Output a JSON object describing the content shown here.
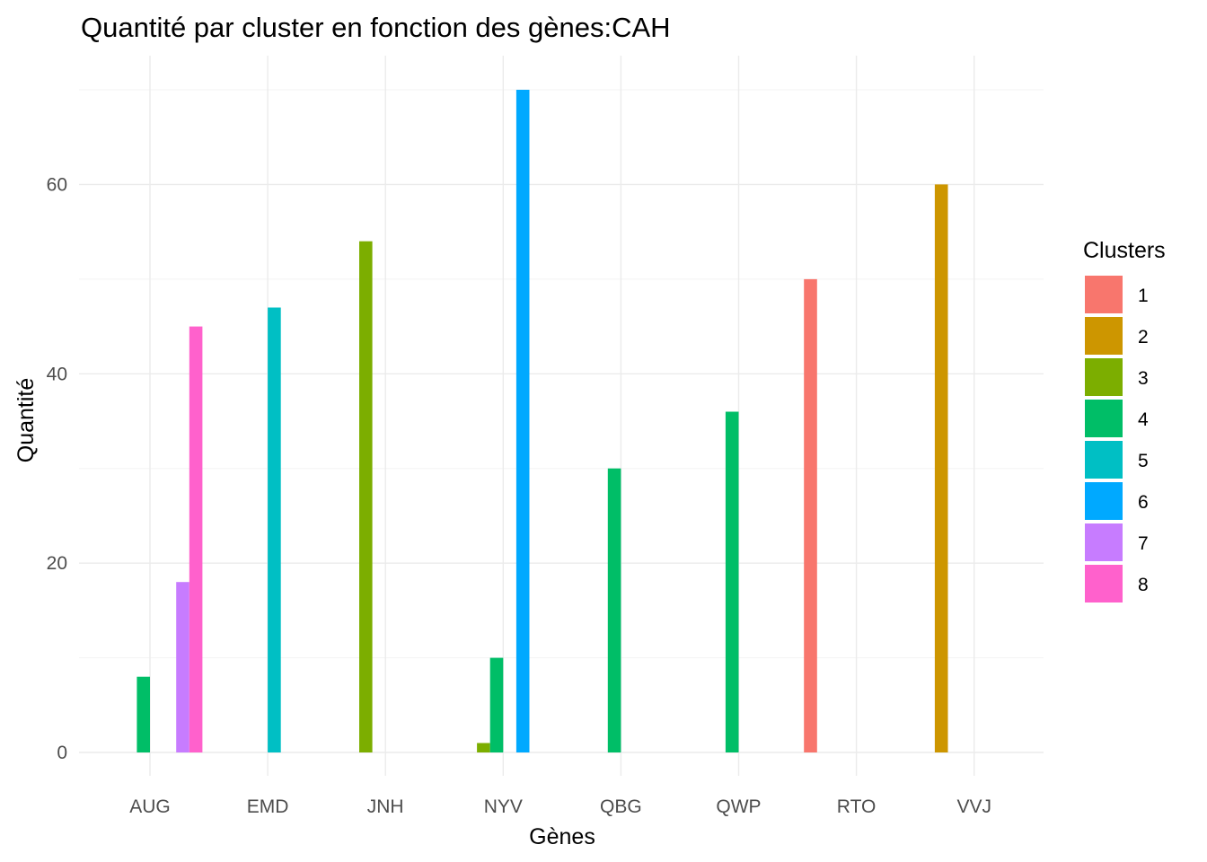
{
  "chart_data": {
    "type": "bar",
    "title": "Quantité par cluster en fonction des gènes:CAH",
    "xlabel": "Gènes",
    "ylabel": "Quantité",
    "categories": [
      "AUG",
      "EMD",
      "JNH",
      "NYV",
      "QBG",
      "QWP",
      "RTO",
      "VVJ"
    ],
    "ylim": [
      0,
      70
    ],
    "yticks": [
      0,
      20,
      40,
      60
    ],
    "grid": true,
    "legend": {
      "title": "Clusters",
      "position": "right"
    },
    "series": [
      {
        "name": "1",
        "color": "#F8766D",
        "values": [
          null,
          null,
          null,
          null,
          null,
          null,
          50,
          null
        ]
      },
      {
        "name": "2",
        "color": "#CD9600",
        "values": [
          null,
          null,
          null,
          null,
          null,
          null,
          null,
          60
        ]
      },
      {
        "name": "3",
        "color": "#7CAE00",
        "values": [
          null,
          null,
          54,
          1,
          null,
          null,
          null,
          null
        ]
      },
      {
        "name": "4",
        "color": "#00BE67",
        "values": [
          8,
          null,
          null,
          10,
          30,
          36,
          null,
          null
        ]
      },
      {
        "name": "5",
        "color": "#00BFC4",
        "values": [
          null,
          47,
          null,
          null,
          null,
          null,
          null,
          null
        ]
      },
      {
        "name": "6",
        "color": "#00A9FF",
        "values": [
          null,
          null,
          null,
          70,
          null,
          null,
          null,
          null
        ]
      },
      {
        "name": "7",
        "color": "#C77CFF",
        "values": [
          18,
          null,
          null,
          null,
          null,
          null,
          null,
          null
        ]
      },
      {
        "name": "8",
        "color": "#FF61CC",
        "values": [
          45,
          null,
          null,
          null,
          null,
          null,
          null,
          null
        ]
      }
    ]
  }
}
